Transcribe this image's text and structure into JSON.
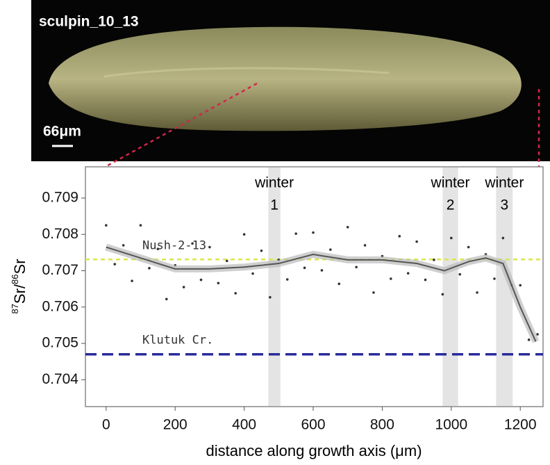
{
  "photo": {
    "label": "sculpin_10_13",
    "scale_bar": "66μm"
  },
  "chart_data": {
    "type": "scatter",
    "xlabel": "distance along growth axis (μm)",
    "ylabel": [
      "87",
      "Sr/",
      "86",
      "Sr"
    ],
    "xlim": [
      -60,
      1266
    ],
    "ylim": [
      0.70326,
      0.70986
    ],
    "xticks": [
      0,
      200,
      400,
      600,
      800,
      1000,
      1200
    ],
    "yticks": [
      0.704,
      0.705,
      0.706,
      0.707,
      0.708,
      0.709
    ],
    "points": {
      "color": "#333333",
      "x": [
        0,
        25,
        50,
        75,
        100,
        125,
        150,
        175,
        200,
        225,
        250,
        275,
        300,
        325,
        350,
        375,
        400,
        425,
        450,
        475,
        500,
        525,
        550,
        575,
        600,
        625,
        650,
        675,
        700,
        725,
        750,
        775,
        800,
        825,
        850,
        875,
        900,
        925,
        950,
        975,
        1000,
        1025,
        1050,
        1075,
        1100,
        1125,
        1150,
        1175,
        1200,
        1225,
        1250
      ],
      "values": [
        0.70825,
        0.70718,
        0.7077,
        0.70672,
        0.70825,
        0.70707,
        0.7076,
        0.70622,
        0.70715,
        0.70655,
        0.70775,
        0.70675,
        0.70765,
        0.70666,
        0.70727,
        0.70638,
        0.708,
        0.70692,
        0.70755,
        0.70627,
        0.7073,
        0.70676,
        0.70802,
        0.70708,
        0.70805,
        0.70701,
        0.70758,
        0.70664,
        0.7082,
        0.7071,
        0.7077,
        0.7064,
        0.7074,
        0.70678,
        0.70795,
        0.70693,
        0.7078,
        0.70675,
        0.7073,
        0.70635,
        0.7079,
        0.7069,
        0.70765,
        0.7064,
        0.70745,
        0.70678,
        0.7079,
        0.7066,
        0.7066,
        0.7051,
        0.70525
      ]
    },
    "trend": {
      "color": "#555555",
      "x": [
        0,
        100,
        200,
        300,
        400,
        500,
        600,
        700,
        800,
        900,
        980,
        1050,
        1100,
        1150,
        1200,
        1245
      ],
      "values": [
        0.70765,
        0.70735,
        0.70705,
        0.70705,
        0.7071,
        0.7072,
        0.70745,
        0.7073,
        0.7073,
        0.7072,
        0.707,
        0.70725,
        0.70735,
        0.7072,
        0.706,
        0.70505
      ]
    },
    "reference_lines": [
      {
        "label": "Nush-2-13",
        "value": 0.70731,
        "color": "#d8e84a"
      },
      {
        "label": "Klutuk Cr.",
        "value": 0.7047,
        "color": "#2a2a9c"
      }
    ],
    "bands": [
      {
        "label": "winter",
        "number": "1",
        "start": 470,
        "end": 505
      },
      {
        "label": "winter",
        "number": "2",
        "start": 975,
        "end": 1020
      },
      {
        "label": "winter",
        "number": "3",
        "start": 1130,
        "end": 1178
      }
    ]
  }
}
